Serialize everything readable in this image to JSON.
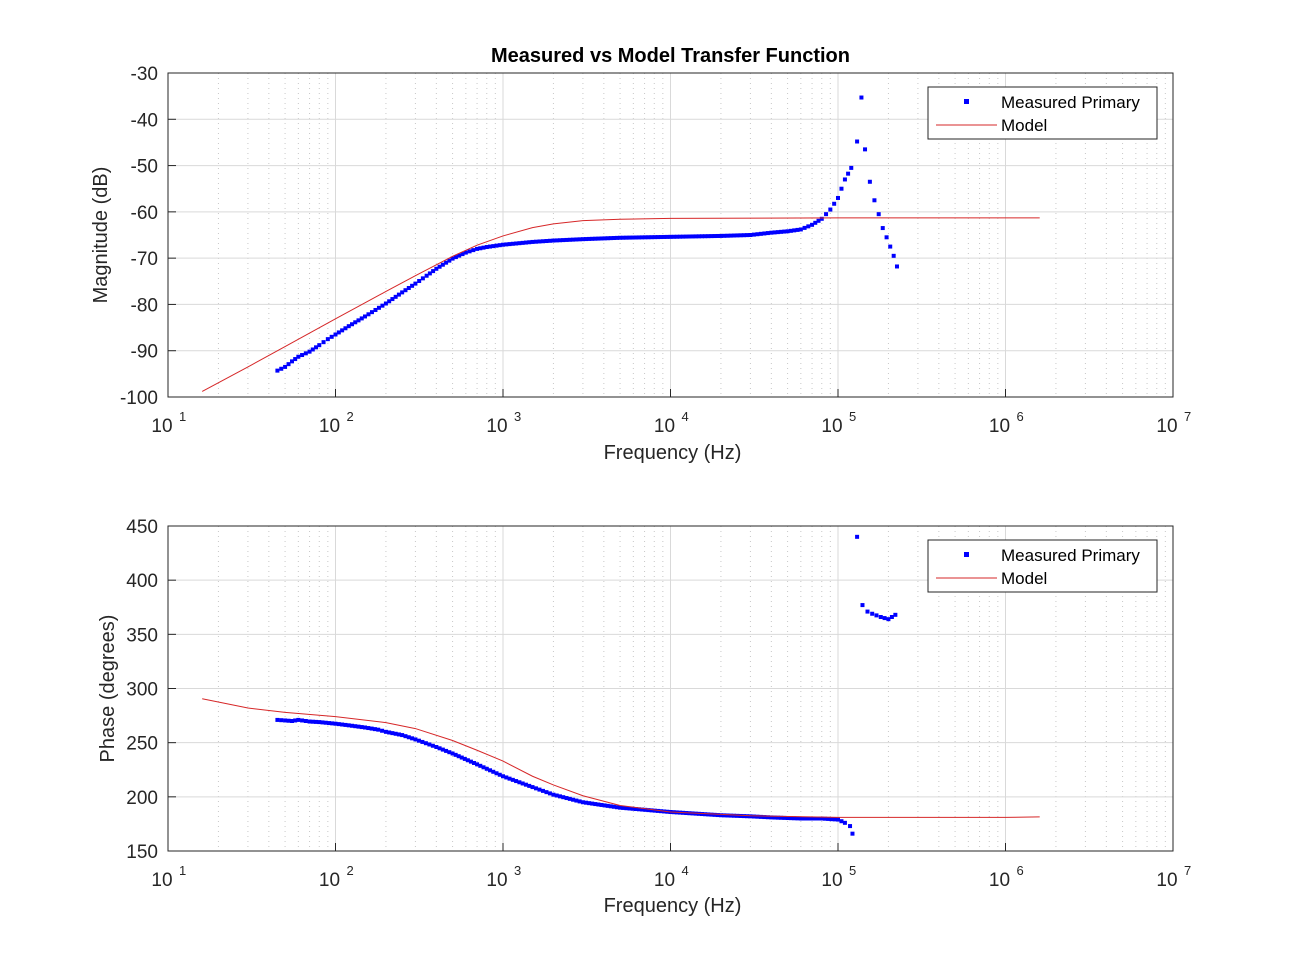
{
  "chart_data": [
    {
      "type": "line",
      "title": "Measured vs Model Transfer Function",
      "xlabel": "Frequency (Hz)",
      "ylabel": "Magnitude (dB)",
      "xscale": "log",
      "xlim": [
        10,
        10000000
      ],
      "ylim": [
        -100,
        -30
      ],
      "yticks": [
        -100,
        -90,
        -80,
        -70,
        -60,
        -50,
        -40,
        -30
      ],
      "xticks": [
        {
          "base": "10",
          "exp": "1"
        },
        {
          "base": "10",
          "exp": "2"
        },
        {
          "base": "10",
          "exp": "3"
        },
        {
          "base": "10",
          "exp": "4"
        },
        {
          "base": "10",
          "exp": "5"
        },
        {
          "base": "10",
          "exp": "6"
        },
        {
          "base": "10",
          "exp": "7"
        }
      ],
      "grid": true,
      "legend_position": "top-right",
      "series": [
        {
          "name": "Measured Primary",
          "style": "markers",
          "color": "#0000ff",
          "points": [
            [
              45,
              -94.3
            ],
            [
              50,
              -93.5
            ],
            [
              55,
              -92.3
            ],
            [
              60,
              -91.3
            ],
            [
              70,
              -90.2
            ],
            [
              80,
              -88.8
            ],
            [
              90,
              -87.5
            ],
            [
              100,
              -86.5
            ],
            [
              120,
              -84.7
            ],
            [
              150,
              -82.6
            ],
            [
              200,
              -79.8
            ],
            [
              250,
              -77.4
            ],
            [
              300,
              -75.5
            ],
            [
              350,
              -73.8
            ],
            [
              400,
              -72.3
            ],
            [
              500,
              -70.1
            ],
            [
              600,
              -68.8
            ],
            [
              700,
              -68.0
            ],
            [
              800,
              -67.6
            ],
            [
              1000,
              -67.1
            ],
            [
              1500,
              -66.5
            ],
            [
              2000,
              -66.2
            ],
            [
              3000,
              -65.9
            ],
            [
              5000,
              -65.6
            ],
            [
              10000,
              -65.4
            ],
            [
              20000,
              -65.2
            ],
            [
              30000,
              -65.0
            ],
            [
              40000,
              -64.5
            ],
            [
              50000,
              -64.2
            ],
            [
              60000,
              -63.8
            ],
            [
              70000,
              -62.8
            ],
            [
              80000,
              -61.5
            ],
            [
              90000,
              -59.5
            ],
            [
              100000,
              -57.0
            ],
            [
              110000,
              -53.0
            ],
            [
              120000,
              -50.5
            ],
            [
              130000,
              -44.8
            ],
            [
              138000,
              -35.3
            ],
            [
              145000,
              -46.5
            ],
            [
              155000,
              -53.5
            ],
            [
              165000,
              -57.5
            ],
            [
              175000,
              -60.5
            ],
            [
              185000,
              -63.5
            ],
            [
              195000,
              -65.5
            ],
            [
              205000,
              -67.5
            ],
            [
              215000,
              -69.5
            ],
            [
              225000,
              -71.8
            ]
          ]
        },
        {
          "name": "Model",
          "style": "line",
          "color": "#d62728",
          "points": [
            [
              16,
              -98.8
            ],
            [
              30,
              -93.5
            ],
            [
              50,
              -89.1
            ],
            [
              100,
              -83.1
            ],
            [
              200,
              -77.2
            ],
            [
              300,
              -73.8
            ],
            [
              500,
              -69.6
            ],
            [
              700,
              -67.2
            ],
            [
              1000,
              -65.2
            ],
            [
              1500,
              -63.4
            ],
            [
              2000,
              -62.6
            ],
            [
              3000,
              -61.9
            ],
            [
              5000,
              -61.6
            ],
            [
              10000,
              -61.4
            ],
            [
              100000,
              -61.3
            ],
            [
              1000000,
              -61.3
            ],
            [
              1600000,
              -61.3
            ]
          ]
        }
      ]
    },
    {
      "type": "line",
      "title": "",
      "xlabel": "Frequency (Hz)",
      "ylabel": "Phase (degrees)",
      "xscale": "log",
      "xlim": [
        10,
        10000000
      ],
      "ylim": [
        150,
        450
      ],
      "yticks": [
        150,
        200,
        250,
        300,
        350,
        400,
        450
      ],
      "xticks": [
        {
          "base": "10",
          "exp": "1"
        },
        {
          "base": "10",
          "exp": "2"
        },
        {
          "base": "10",
          "exp": "3"
        },
        {
          "base": "10",
          "exp": "4"
        },
        {
          "base": "10",
          "exp": "5"
        },
        {
          "base": "10",
          "exp": "6"
        },
        {
          "base": "10",
          "exp": "7"
        }
      ],
      "grid": true,
      "legend_position": "top-right",
      "series": [
        {
          "name": "Measured Primary",
          "style": "markers",
          "color": "#0000ff",
          "points": [
            [
              45,
              271
            ],
            [
              50,
              270.5
            ],
            [
              55,
              270
            ],
            [
              60,
              271
            ],
            [
              70,
              269.5
            ],
            [
              80,
              269
            ],
            [
              100,
              267.5
            ],
            [
              120,
              266
            ],
            [
              150,
              264
            ],
            [
              180,
              262
            ],
            [
              200,
              260
            ],
            [
              250,
              257
            ],
            [
              300,
              253
            ],
            [
              400,
              246
            ],
            [
              500,
              240
            ],
            [
              700,
              230
            ],
            [
              1000,
              219
            ],
            [
              1500,
              209
            ],
            [
              2000,
              202
            ],
            [
              3000,
              195
            ],
            [
              5000,
              190
            ],
            [
              10000,
              186
            ],
            [
              20000,
              183
            ],
            [
              30000,
              182
            ],
            [
              40000,
              181
            ],
            [
              60000,
              180
            ],
            [
              80000,
              180
            ],
            [
              100000,
              179
            ],
            [
              110000,
              176
            ],
            [
              118000,
              173
            ],
            [
              122000,
              166
            ],
            [
              130000,
              440
            ],
            [
              140000,
              377
            ],
            [
              150000,
              371
            ],
            [
              160000,
              369
            ],
            [
              180000,
              366
            ],
            [
              200000,
              364
            ],
            [
              220000,
              368
            ]
          ]
        },
        {
          "name": "Model",
          "style": "line",
          "color": "#d62728",
          "points": [
            [
              16,
              290.5
            ],
            [
              30,
              282
            ],
            [
              50,
              278
            ],
            [
              100,
              274
            ],
            [
              200,
              268.5
            ],
            [
              300,
              263
            ],
            [
              500,
              252
            ],
            [
              700,
              243
            ],
            [
              1000,
              233
            ],
            [
              1500,
              219
            ],
            [
              2000,
              211
            ],
            [
              3000,
              201
            ],
            [
              5000,
              192
            ],
            [
              10000,
              186
            ],
            [
              30000,
              182.5
            ],
            [
              100000,
              181
            ],
            [
              1000000,
              181
            ],
            [
              1600000,
              181.5
            ]
          ]
        }
      ]
    }
  ]
}
